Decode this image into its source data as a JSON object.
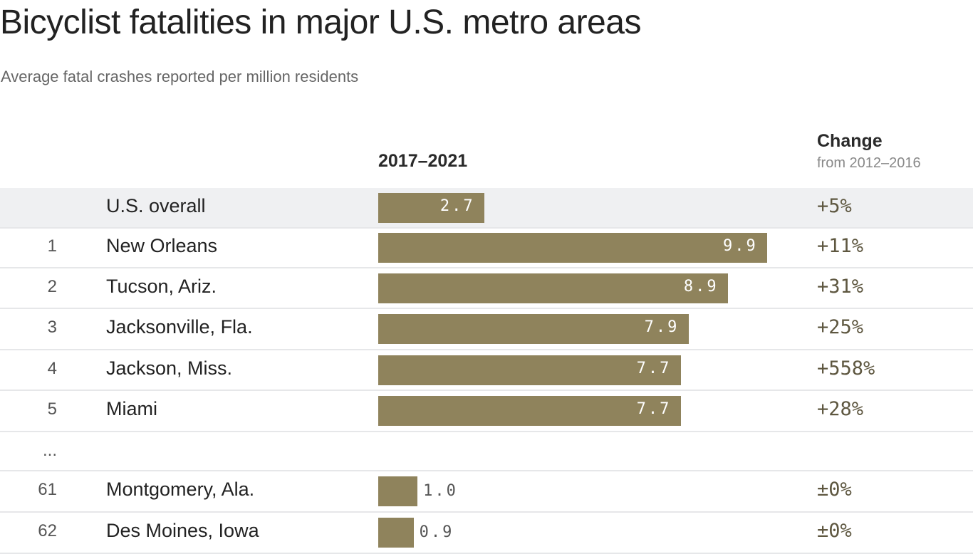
{
  "chart_data": {
    "type": "bar",
    "title": "Bicyclist fatalities in major U.S. metro areas",
    "subtitle": "Average fatal crashes reported per million residents",
    "value_header": "2017–2021",
    "change_header": "Change",
    "change_subheader": "from 2012–2016",
    "bar_color": "#8f835c",
    "highlight_row_color": "#eff0f2",
    "ellipsis": "...",
    "rows": [
      {
        "rank": "",
        "name": "U.S. overall",
        "value": 2.7,
        "label": "2.7",
        "change": "+5%",
        "highlight": true
      },
      {
        "rank": "1",
        "name": "New Orleans",
        "value": 9.9,
        "label": "9.9",
        "change": "+11%"
      },
      {
        "rank": "2",
        "name": "Tucson, Ariz.",
        "value": 8.9,
        "label": "8.9",
        "change": "+31%"
      },
      {
        "rank": "3",
        "name": "Jacksonville, Fla.",
        "value": 7.9,
        "label": "7.9",
        "change": "+25%"
      },
      {
        "rank": "4",
        "name": "Jackson, Miss.",
        "value": 7.7,
        "label": "7.7",
        "change": "+558%"
      },
      {
        "rank": "5",
        "name": "Miami",
        "value": 7.7,
        "label": "7.7",
        "change": "+28%"
      },
      {
        "ellipsis": true
      },
      {
        "rank": "61",
        "name": "Montgomery, Ala.",
        "value": 1.0,
        "label": "1.0",
        "change": "±0%"
      },
      {
        "rank": "62",
        "name": "Des Moines, Iowa",
        "value": 0.9,
        "label": "0.9",
        "change": "±0%"
      }
    ]
  }
}
